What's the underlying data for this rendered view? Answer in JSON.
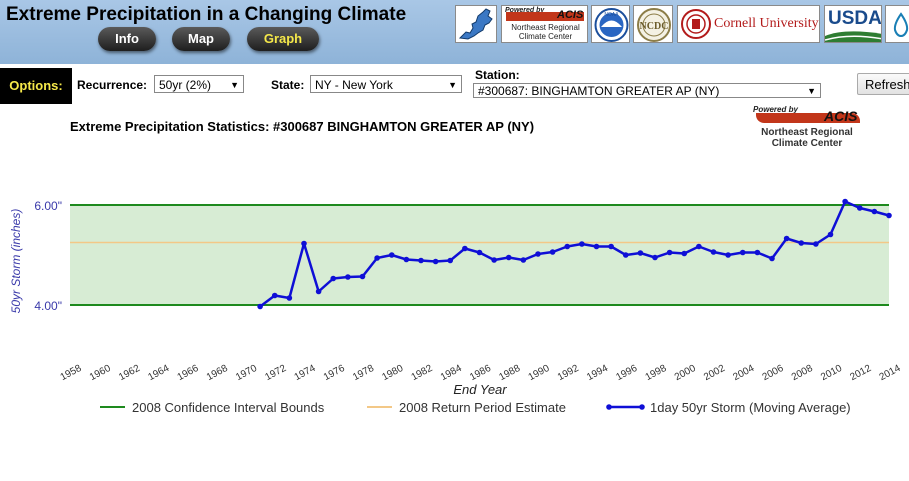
{
  "header": {
    "title": "Extreme Precipitation in a Changing Climate",
    "nav": [
      {
        "label": "Info",
        "active": false
      },
      {
        "label": "Map",
        "active": false
      },
      {
        "label": "Graph",
        "active": true
      }
    ],
    "logos": {
      "acis_powered_by": "Powered by",
      "acis_name": "ACIS",
      "acis_org_line1": "Northeast Regional",
      "acis_org_line2": "Climate Center",
      "noaa": "NOAA",
      "ncdc": "NCDC",
      "cornell": "Cornell University",
      "usda": "USDA"
    }
  },
  "options": {
    "label": "Options:",
    "recurrence_label": "Recurrence:",
    "recurrence_value": "50yr (2%)",
    "state_label": "State:",
    "state_value": "NY - New York",
    "station_label": "Station:",
    "station_value": "#300687: BINGHAMTON GREATER AP (NY)",
    "refresh_label": "Refresh"
  },
  "chart_title": "Extreme Precipitation Statistics: #300687 BINGHAMTON GREATER AP (NY)",
  "colors": {
    "header_bg": "#9dbde0",
    "band_fill": "#d7ecd4",
    "ci_line": "#1e8a1e",
    "estimate_line": "#f3c887",
    "series": "#0f0fd6",
    "axis_text": "#3a3aaa"
  },
  "chart_data": {
    "type": "line",
    "xlabel": "End Year",
    "ylabel": "50yr Storm (inches)",
    "xlim": [
      1958,
      2014
    ],
    "ylim": [
      3.0,
      7.0
    ],
    "x_ticks": [
      "1958",
      "1960",
      "1962",
      "1964",
      "1966",
      "1968",
      "1970",
      "1972",
      "1974",
      "1976",
      "1978",
      "1980",
      "1982",
      "1984",
      "1986",
      "1988",
      "1990",
      "1992",
      "1994",
      "1996",
      "1998",
      "2000",
      "2002",
      "2004",
      "2006",
      "2008",
      "2010",
      "2012",
      "2014"
    ],
    "y_ticks": [
      {
        "value": 4.0,
        "label": "4.00\""
      },
      {
        "value": 6.0,
        "label": "6.00\""
      }
    ],
    "bands": [
      {
        "name": "2008 Confidence Interval Bounds",
        "lower": 4.0,
        "upper": 6.0
      }
    ],
    "reference_lines": [
      {
        "name": "2008 Return Period Estimate",
        "value": 5.25
      }
    ],
    "series": [
      {
        "name": "1day 50yr Storm (Moving Average)",
        "x": [
          1971,
          1972,
          1973,
          1974,
          1975,
          1976,
          1977,
          1978,
          1979,
          1980,
          1981,
          1982,
          1983,
          1984,
          1985,
          1986,
          1987,
          1988,
          1989,
          1990,
          1991,
          1992,
          1993,
          1994,
          1995,
          1996,
          1997,
          1998,
          1999,
          2000,
          2001,
          2002,
          2003,
          2004,
          2005,
          2006,
          2007,
          2008,
          2009,
          2010,
          2011,
          2012,
          2013,
          2014
        ],
        "y": [
          3.97,
          4.19,
          4.14,
          5.23,
          4.27,
          4.53,
          4.56,
          4.57,
          4.94,
          5.0,
          4.91,
          4.89,
          4.87,
          4.89,
          5.13,
          5.05,
          4.9,
          4.95,
          4.9,
          5.02,
          5.06,
          5.17,
          5.22,
          5.17,
          5.17,
          5.0,
          5.04,
          4.95,
          5.05,
          5.03,
          5.17,
          5.06,
          5.0,
          5.05,
          5.05,
          4.93,
          5.33,
          5.24,
          5.22,
          5.41,
          6.07,
          5.94,
          5.87,
          5.79
        ]
      }
    ],
    "legend": [
      {
        "label": "2008 Confidence Interval Bounds",
        "kind": "ci"
      },
      {
        "label": "2008 Return Period Estimate",
        "kind": "estimate"
      },
      {
        "label": "1day 50yr Storm (Moving Average)",
        "kind": "series"
      }
    ],
    "legend_position": "bottom"
  }
}
